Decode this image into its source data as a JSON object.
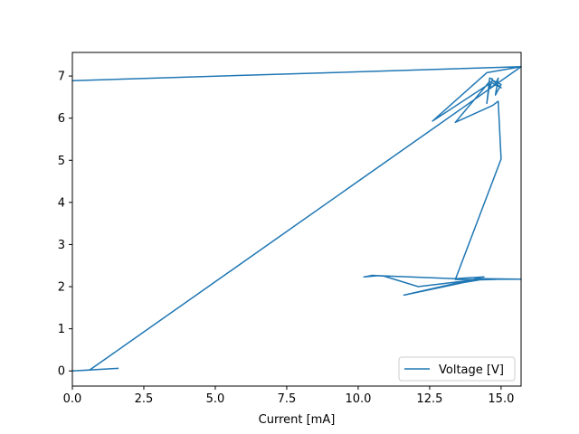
{
  "chart_data": {
    "type": "line",
    "title": "",
    "xlabel": "Current [mA]",
    "ylabel": "",
    "xlim": [
      0.0,
      15.7
    ],
    "ylim": [
      -0.36,
      7.56
    ],
    "xticks": [
      0.0,
      2.5,
      5.0,
      7.5,
      10.0,
      12.5,
      15.0
    ],
    "xtick_labels": [
      "0.0",
      "2.5",
      "5.0",
      "7.5",
      "10.0",
      "12.5",
      "15.0"
    ],
    "yticks": [
      0,
      1,
      2,
      3,
      4,
      5,
      6,
      7
    ],
    "ytick_labels": [
      "0",
      "1",
      "2",
      "3",
      "4",
      "5",
      "6",
      "7"
    ],
    "grid": false,
    "legend_position": "lower right",
    "series": [
      {
        "name": "Voltage [V]",
        "color": "#1f77b4",
        "x": [
          0.0,
          1.6,
          0.3,
          0.6,
          15.7,
          15.7,
          0.0,
          15.7,
          14.5,
          12.6,
          14.6,
          14.5,
          14.6,
          14.7,
          14.6,
          14.8,
          14.9,
          14.8,
          15.0,
          14.7,
          15.0,
          14.6,
          13.4,
          14.7,
          14.9,
          15.0,
          13.4,
          15.7,
          14.4,
          12.1,
          10.9,
          10.5,
          10.2,
          10.7,
          13.4,
          14.4,
          11.6,
          13.7,
          14.4,
          14.8,
          14.0
        ],
        "y": [
          0.0,
          0.06,
          0.01,
          0.02,
          7.22,
          7.22,
          6.89,
          7.22,
          7.08,
          5.93,
          6.82,
          6.35,
          6.95,
          6.93,
          6.7,
          6.81,
          6.95,
          6.55,
          6.8,
          6.9,
          6.72,
          6.87,
          5.9,
          6.3,
          6.4,
          5.03,
          2.17,
          2.18,
          2.19,
          2.0,
          2.25,
          2.27,
          2.23,
          2.26,
          2.19,
          2.23,
          1.8,
          2.1,
          2.18,
          2.17,
          2.16
        ]
      }
    ]
  }
}
